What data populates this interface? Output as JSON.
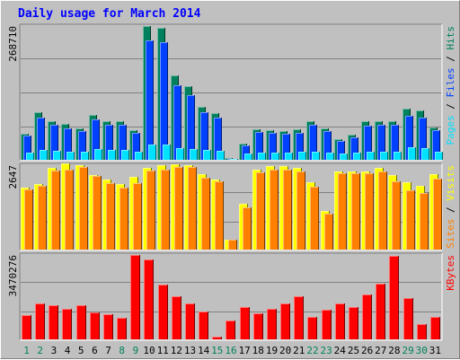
{
  "title": "Daily usage for March 2014",
  "colors": {
    "background": "#c0c0c0",
    "plot_background": "#c0c0c0",
    "grid": "#808080",
    "title": "#0000ff",
    "day_weekday": "#000000",
    "day_weekend": "#00805c",
    "hits": "#00805c",
    "files": "#0040ff",
    "pages": "#00e0ff",
    "visits": "#ffff00",
    "sites": "#ff8000",
    "kbytes": "#ff0000",
    "slash": "#000000"
  },
  "chart_data": [
    {
      "type": "bar",
      "name": "hits-files-pages",
      "y_tick_label": "268710",
      "ylim": [
        0,
        268710
      ],
      "ylabel_parts": [
        {
          "text": "Pages",
          "color": "#00e0ff"
        },
        {
          "text": " / ",
          "color": "#000000"
        },
        {
          "text": "Files",
          "color": "#0040ff"
        },
        {
          "text": " / ",
          "color": "#000000"
        },
        {
          "text": "Hits",
          "color": "#00805c"
        }
      ],
      "series": [
        {
          "name": "Hits",
          "color": "#00805c",
          "values": [
            53000,
            95000,
            78000,
            72000,
            63000,
            90000,
            78000,
            78000,
            60000,
            268000,
            265000,
            170000,
            147000,
            106000,
            94000,
            3000,
            33000,
            62000,
            59000,
            58000,
            61000,
            78000,
            64000,
            42000,
            50000,
            78000,
            78000,
            78000,
            103000,
            99000,
            65000
          ]
        },
        {
          "name": "Files",
          "color": "#0040ff",
          "values": [
            48000,
            85000,
            71000,
            64000,
            58000,
            82000,
            70000,
            70000,
            55000,
            240000,
            237000,
            150000,
            130000,
            96000,
            85000,
            2000,
            29000,
            56000,
            54000,
            52000,
            55000,
            70000,
            57000,
            38000,
            45000,
            69000,
            70000,
            70000,
            88000,
            85000,
            59000
          ]
        },
        {
          "name": "Pages",
          "color": "#00e0ff",
          "values": [
            14000,
            19000,
            18000,
            17000,
            17000,
            22000,
            20000,
            19000,
            17000,
            30000,
            30000,
            24000,
            22000,
            20000,
            18000,
            1000,
            13000,
            15000,
            15000,
            15000,
            16000,
            17000,
            15000,
            12000,
            14000,
            16000,
            16000,
            17000,
            25000,
            24000,
            17000
          ]
        }
      ]
    },
    {
      "type": "bar",
      "name": "visits-sites",
      "y_tick_label": "2647",
      "ylim": [
        0,
        2647
      ],
      "ylabel_parts": [
        {
          "text": "Sites",
          "color": "#ff8000"
        },
        {
          "text": " / ",
          "color": "#000000"
        },
        {
          "text": "Visits",
          "color": "#ffff00"
        }
      ],
      "series": [
        {
          "name": "Visits",
          "color": "#ffff00",
          "values": [
            1930,
            2050,
            2550,
            2690,
            2650,
            2330,
            2210,
            2050,
            2290,
            2560,
            2650,
            2680,
            2650,
            2360,
            2200,
            320,
            1430,
            2500,
            2620,
            2620,
            2550,
            2100,
            1200,
            2450,
            2450,
            2450,
            2560,
            2330,
            2100,
            2000,
            2360
          ]
        },
        {
          "name": "Sites",
          "color": "#ff8000",
          "values": [
            1900,
            2000,
            2490,
            2520,
            2580,
            2300,
            2080,
            1950,
            2080,
            2490,
            2520,
            2600,
            2580,
            2250,
            2140,
            300,
            1320,
            2410,
            2500,
            2510,
            2460,
            1970,
            1130,
            2400,
            2400,
            2400,
            2450,
            2150,
            1850,
            1760,
            2230
          ]
        }
      ]
    },
    {
      "type": "bar",
      "name": "kbytes",
      "y_tick_label": "3470276",
      "ylim": [
        0,
        3470276
      ],
      "ylabel_parts": [
        {
          "text": "KBytes",
          "color": "#ff0000"
        }
      ],
      "series": [
        {
          "name": "KBytes",
          "color": "#ff0000",
          "values": [
            1000000,
            1460000,
            1400000,
            1240000,
            1400000,
            1110000,
            1030000,
            900000,
            3470000,
            3300000,
            2260000,
            1770000,
            1480000,
            1150000,
            100000,
            780000,
            1340000,
            1060000,
            1260000,
            1460000,
            1770000,
            910000,
            1200000,
            1460000,
            1340000,
            1840000,
            2290000,
            3420000,
            1690000,
            610000,
            930000
          ]
        }
      ]
    }
  ],
  "days": [
    {
      "label": "1",
      "weekend": true
    },
    {
      "label": "2",
      "weekend": true
    },
    {
      "label": "3",
      "weekend": false
    },
    {
      "label": "4",
      "weekend": false
    },
    {
      "label": "5",
      "weekend": false
    },
    {
      "label": "6",
      "weekend": false
    },
    {
      "label": "7",
      "weekend": false
    },
    {
      "label": "8",
      "weekend": true
    },
    {
      "label": "9",
      "weekend": true
    },
    {
      "label": "10",
      "weekend": false
    },
    {
      "label": "11",
      "weekend": false
    },
    {
      "label": "12",
      "weekend": false
    },
    {
      "label": "13",
      "weekend": false
    },
    {
      "label": "14",
      "weekend": false
    },
    {
      "label": "15",
      "weekend": true
    },
    {
      "label": "16",
      "weekend": true
    },
    {
      "label": "17",
      "weekend": false
    },
    {
      "label": "18",
      "weekend": false
    },
    {
      "label": "19",
      "weekend": false
    },
    {
      "label": "20",
      "weekend": false
    },
    {
      "label": "21",
      "weekend": false
    },
    {
      "label": "22",
      "weekend": true
    },
    {
      "label": "23",
      "weekend": true
    },
    {
      "label": "24",
      "weekend": false
    },
    {
      "label": "25",
      "weekend": false
    },
    {
      "label": "26",
      "weekend": false
    },
    {
      "label": "27",
      "weekend": false
    },
    {
      "label": "28",
      "weekend": false
    },
    {
      "label": "29",
      "weekend": true
    },
    {
      "label": "30",
      "weekend": true
    },
    {
      "label": "31",
      "weekend": false
    }
  ]
}
